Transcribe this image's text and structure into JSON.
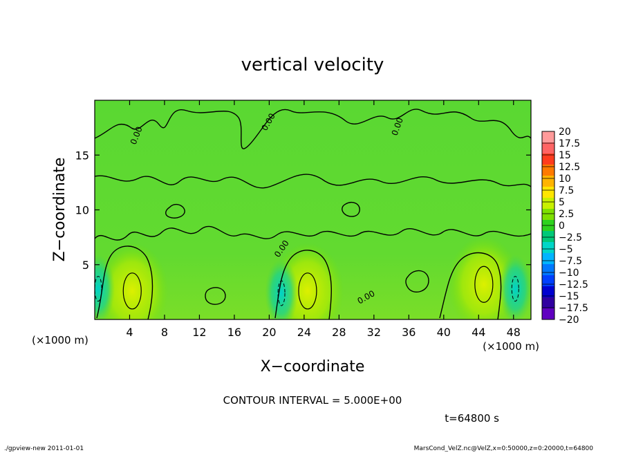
{
  "chart_data": {
    "type": "heatmap",
    "title": "vertical velocity",
    "xlabel": "X−coordinate",
    "ylabel": "Z−coordinate",
    "x_unit_left": "(×1000 m)",
    "x_unit_right": "(×1000 m)",
    "xlim": [
      0,
      50
    ],
    "ylim": [
      0,
      20
    ],
    "x_ticks": [
      4,
      8,
      12,
      16,
      20,
      24,
      28,
      32,
      36,
      40,
      44,
      48
    ],
    "y_ticks": [
      5,
      10,
      15
    ],
    "contour_label": "0.00",
    "colorbar": {
      "labels": [
        "20",
        "17.5",
        "15",
        "12.5",
        "10",
        "7.5",
        "5",
        "2.5",
        "0",
        "−2.5",
        "−5",
        "−7.5",
        "−10",
        "−12.5",
        "−15",
        "−17.5",
        "−20"
      ],
      "colors": [
        "#ff9a9a",
        "#ff6464",
        "#ff3c1e",
        "#ff7a00",
        "#ffb400",
        "#ffe600",
        "#c8f000",
        "#7ee000",
        "#2ed21e",
        "#00c878",
        "#00d6c8",
        "#00b4ff",
        "#0078ff",
        "#0040ff",
        "#0000d0",
        "#3000a0",
        "#6000c0"
      ]
    },
    "warm_cells": [
      {
        "x": 4.3,
        "z": 2.6
      },
      {
        "x": 24.4,
        "z": 2.6
      },
      {
        "x": 44.6,
        "z": 3.2
      }
    ],
    "cool_cells": [
      {
        "x": 0.4,
        "z": 2.8
      },
      {
        "x": 21.4,
        "z": 2.4
      },
      {
        "x": 48.2,
        "z": 2.8
      }
    ]
  },
  "footer": {
    "contour_interval": "CONTOUR INTERVAL = 5.000E+00",
    "time": "t=64800 s",
    "program": "./gpview-new   2011-01-01",
    "source": "MarsCond_VelZ.nc@VelZ,x=0:50000,z=0:20000,t=64800"
  }
}
